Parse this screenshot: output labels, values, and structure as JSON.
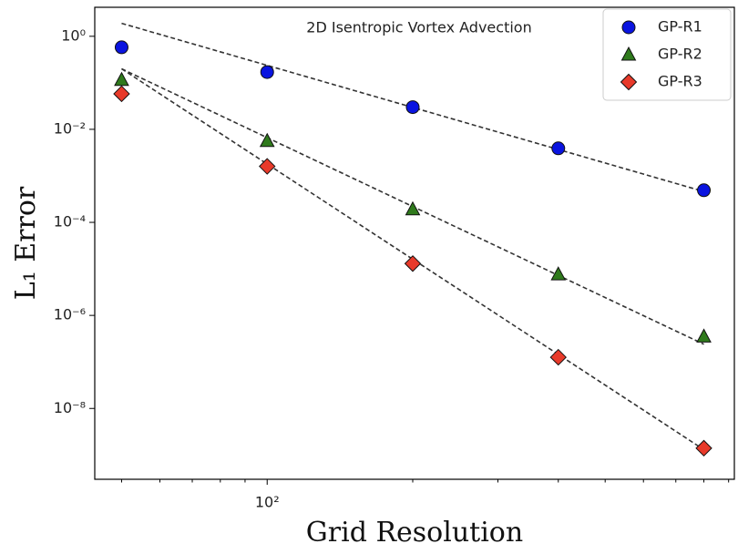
{
  "chart_data": {
    "type": "scatter",
    "title": "2D Isentropic Vortex Advection",
    "xlabel": "Grid Resolution",
    "ylabel": "L₁ Error",
    "xscale": "log",
    "yscale": "log",
    "xlim": [
      44,
      925
    ],
    "ylim": [
      3e-10,
      4.2
    ],
    "xticks": [
      {
        "value": 100,
        "label": "10²"
      }
    ],
    "xticks_minor": [
      50,
      60,
      70,
      80,
      90,
      200,
      300,
      400,
      500,
      600,
      700,
      800,
      900
    ],
    "yticks": [
      {
        "value": 1,
        "label": "10⁰"
      },
      {
        "value": 0.01,
        "label": "10⁻²"
      },
      {
        "value": 0.0001,
        "label": "10⁻⁴"
      },
      {
        "value": 1e-06,
        "label": "10⁻⁶"
      },
      {
        "value": 1e-08,
        "label": "10⁻⁸"
      }
    ],
    "legend": "upper right",
    "x": [
      50,
      100,
      200,
      400,
      800
    ],
    "series": [
      {
        "name": "GP-R1",
        "color": "#0a14e0",
        "marker": "circle",
        "values": [
          0.58,
          0.17,
          0.03,
          0.0039,
          0.00049
        ]
      },
      {
        "name": "GP-R2",
        "color": "#2f7a1c",
        "marker": "triangle",
        "values": [
          0.115,
          0.0056,
          0.00019,
          7.6e-06,
          3.5e-07
        ]
      },
      {
        "name": "GP-R3",
        "color": "#e83a2a",
        "marker": "diamond",
        "values": [
          0.058,
          0.0016,
          1.3e-05,
          1.26e-07,
          1.4e-09
        ]
      }
    ],
    "reference_lines": [
      {
        "x": [
          50,
          800
        ],
        "values": [
          1.9,
          0.00046
        ]
      },
      {
        "x": [
          50,
          800
        ],
        "values": [
          0.2,
          2.4e-07
        ]
      },
      {
        "x": [
          50,
          800
        ],
        "values": [
          0.2,
          1.3e-09
        ]
      }
    ]
  }
}
